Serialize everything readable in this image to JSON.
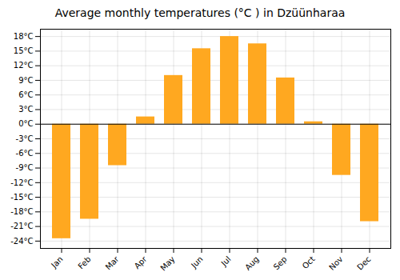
{
  "chart_data": {
    "type": "bar",
    "title": "Average monthly temperatures (°C ) in Dzüünharaa",
    "categories": [
      "Jan",
      "Feb",
      "Mar",
      "Apr",
      "May",
      "Jun",
      "Jul",
      "Aug",
      "Sep",
      "Oct",
      "Nov",
      "Dec"
    ],
    "values": [
      -23.5,
      -19.5,
      -8.5,
      1.5,
      10.0,
      15.5,
      18.0,
      16.5,
      9.5,
      0.5,
      -10.5,
      -20.0
    ],
    "color": "#FFA820",
    "ylim": [
      -25.5,
      19.5
    ],
    "yticks": [
      {
        "value": -24,
        "label": "-24°C"
      },
      {
        "value": -21,
        "label": "-21°C"
      },
      {
        "value": -18,
        "label": "-18°C"
      },
      {
        "value": -15,
        "label": "-15°C"
      },
      {
        "value": -12,
        "label": "-12°C"
      },
      {
        "value": -9,
        "label": "-9°C"
      },
      {
        "value": -6,
        "label": "-6°C"
      },
      {
        "value": -3,
        "label": "-3°C"
      },
      {
        "value": 0,
        "label": "0°C"
      },
      {
        "value": 3,
        "label": "3°C"
      },
      {
        "value": 6,
        "label": "6°C"
      },
      {
        "value": 9,
        "label": "9°C"
      },
      {
        "value": 12,
        "label": "12°C"
      },
      {
        "value": 15,
        "label": "15°C"
      },
      {
        "value": 18,
        "label": "18°C"
      }
    ],
    "grid": true
  }
}
